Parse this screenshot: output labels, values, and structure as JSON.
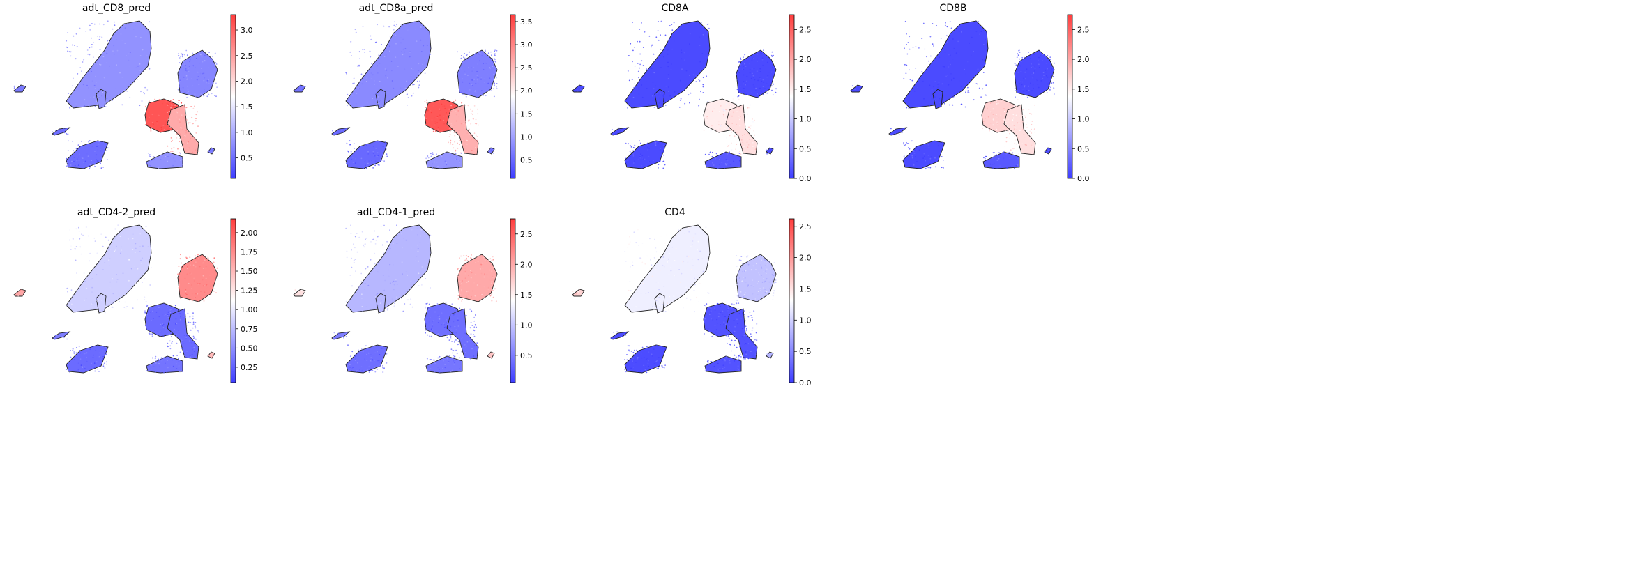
{
  "chart_data": [
    {
      "type": "scatter",
      "title": "adt_CD8_pred",
      "colormap": "bwr",
      "colorbar": {
        "min": 0.1,
        "max": 3.3,
        "ticks": [
          0.5,
          1.0,
          1.5,
          2.0,
          2.5,
          3.0
        ],
        "tick_labels": [
          "0.5",
          "1.0",
          "1.5",
          "2.0",
          "2.5",
          "3.0"
        ]
      },
      "cluster_levels": {
        "big_top": 0.8,
        "right_top": 0.7,
        "mid_red": 3.1,
        "tail": 2.4,
        "bottom_left": 0.5,
        "small_left": 0.6,
        "tiny_right": 0.6,
        "mid_bottom": 0.8,
        "thin_left": 0.5
      }
    },
    {
      "type": "scatter",
      "title": "adt_CD8a_pred",
      "colormap": "bwr",
      "colorbar": {
        "min": 0.1,
        "max": 3.65,
        "ticks": [
          0.5,
          1.0,
          1.5,
          2.0,
          2.5,
          3.0,
          3.5
        ],
        "tick_labels": [
          "0.5",
          "1.0",
          "1.5",
          "2.0",
          "2.5",
          "3.0",
          "3.5"
        ]
      },
      "cluster_levels": {
        "big_top": 0.8,
        "right_top": 0.7,
        "mid_red": 3.4,
        "tail": 2.6,
        "bottom_left": 0.5,
        "small_left": 0.6,
        "tiny_right": 0.6,
        "mid_bottom": 0.9,
        "thin_left": 0.5
      }
    },
    {
      "type": "scatter",
      "title": "CD8A",
      "colormap": "bwr",
      "colorbar": {
        "min": 0.0,
        "max": 2.75,
        "ticks": [
          0.0,
          0.5,
          1.0,
          1.5,
          2.0,
          2.5
        ],
        "tick_labels": [
          "0.0",
          "0.5",
          "1.0",
          "1.5",
          "2.0",
          "2.5"
        ]
      },
      "cluster_levels": {
        "big_top": 0.1,
        "right_top": 0.1,
        "mid_red": 1.5,
        "tail": 1.6,
        "bottom_left": 0.1,
        "small_left": 0.1,
        "tiny_right": 0.1,
        "mid_bottom": 0.2,
        "thin_left": 0.1
      }
    },
    {
      "type": "scatter",
      "title": "CD8B",
      "colormap": "bwr",
      "colorbar": {
        "min": 0.0,
        "max": 2.75,
        "ticks": [
          0.0,
          0.5,
          1.0,
          1.5,
          2.0,
          2.5
        ],
        "tick_labels": [
          "0.0",
          "0.5",
          "1.0",
          "1.5",
          "2.0",
          "2.5"
        ]
      },
      "cluster_levels": {
        "big_top": 0.1,
        "right_top": 0.1,
        "mid_red": 1.7,
        "tail": 1.6,
        "bottom_left": 0.1,
        "small_left": 0.1,
        "tiny_right": 0.1,
        "mid_bottom": 0.2,
        "thin_left": 0.1
      }
    },
    {
      "type": "scatter",
      "title": "adt_CD4-2_pred",
      "colormap": "bwr",
      "colorbar": {
        "min": 0.05,
        "max": 2.18,
        "ticks": [
          0.25,
          0.5,
          0.75,
          1.0,
          1.25,
          1.5,
          1.75,
          2.0
        ],
        "tick_labels": [
          "0.25",
          "0.50",
          "0.75",
          "1.00",
          "1.25",
          "1.50",
          "1.75",
          "2.00"
        ]
      },
      "cluster_levels": {
        "big_top": 0.85,
        "right_top": 1.75,
        "mid_red": 0.3,
        "tail": 0.3,
        "bottom_left": 0.3,
        "small_left": 1.6,
        "tiny_right": 1.5,
        "mid_bottom": 0.35,
        "thin_left": 0.4
      }
    },
    {
      "type": "scatter",
      "title": "adt_CD4-1_pred",
      "colormap": "bwr",
      "colorbar": {
        "min": 0.05,
        "max": 2.75,
        "ticks": [
          0.5,
          1.0,
          1.5,
          2.0,
          2.5
        ],
        "tick_labels": [
          "0.5",
          "1.0",
          "1.5",
          "2.0",
          "2.5"
        ]
      },
      "cluster_levels": {
        "big_top": 0.9,
        "right_top": 2.0,
        "mid_red": 0.4,
        "tail": 0.4,
        "bottom_left": 0.4,
        "small_left": 1.6,
        "tiny_right": 1.8,
        "mid_bottom": 0.45,
        "thin_left": 0.5
      }
    },
    {
      "type": "scatter",
      "title": "CD4",
      "colormap": "bwr",
      "colorbar": {
        "min": 0.0,
        "max": 2.62,
        "ticks": [
          0.0,
          0.5,
          1.0,
          1.5,
          2.0,
          2.5
        ],
        "tick_labels": [
          "0.0",
          "0.5",
          "1.0",
          "1.5",
          "2.0",
          "2.5"
        ]
      },
      "cluster_levels": {
        "big_top": 1.2,
        "right_top": 0.9,
        "mid_red": 0.15,
        "tail": 0.15,
        "bottom_left": 0.1,
        "small_left": 1.6,
        "tiny_right": 0.8,
        "mid_bottom": 0.15,
        "thin_left": 0.1
      }
    }
  ]
}
